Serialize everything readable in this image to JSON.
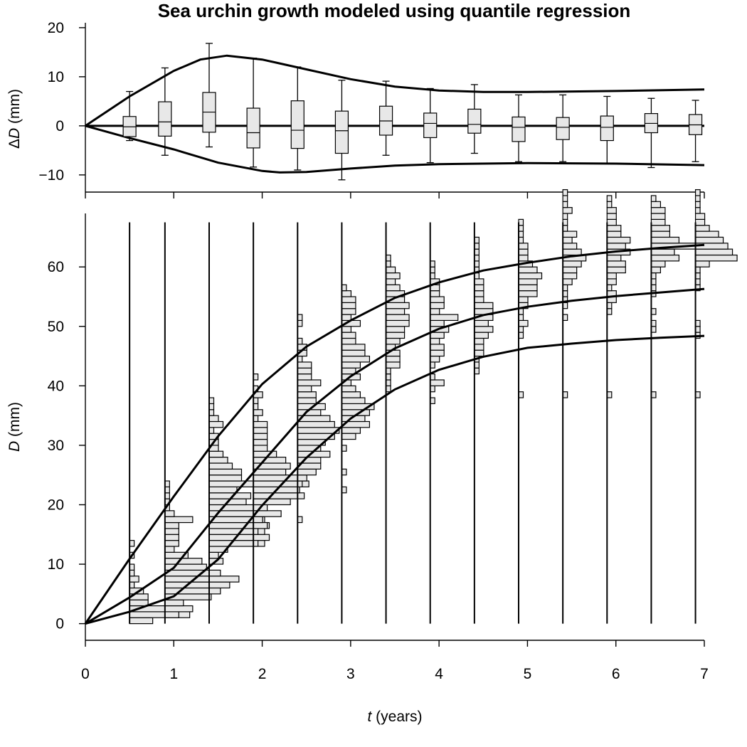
{
  "title": "Sea urchin growth modeled using quantile regression",
  "chart_data": [
    {
      "type": "box",
      "panel": "top",
      "xlabel": "",
      "ylabel_prefix": "Δ",
      "ylabel_var": "D",
      "ylabel_unit": "(mm)",
      "xlim": [
        0,
        7
      ],
      "ylim": [
        -13.5,
        21
      ],
      "y_ticks": [
        -10,
        0,
        10,
        20
      ],
      "y_tick_labels": [
        "−10",
        "0",
        "10",
        "20"
      ],
      "zero_line": true,
      "upper_curve": [
        [
          0,
          0
        ],
        [
          0.5,
          6
        ],
        [
          1,
          11.2
        ],
        [
          1.3,
          13.5
        ],
        [
          1.6,
          14.3
        ],
        [
          2,
          13.5
        ],
        [
          2.5,
          11.5
        ],
        [
          3,
          9.5
        ],
        [
          3.5,
          8
        ],
        [
          4,
          7.2
        ],
        [
          4.5,
          6.9
        ],
        [
          5,
          6.9
        ],
        [
          6,
          7.1
        ],
        [
          7,
          7.4
        ]
      ],
      "lower_curve": [
        [
          0,
          0
        ],
        [
          0.5,
          -2.5
        ],
        [
          1,
          -4.8
        ],
        [
          1.5,
          -7.5
        ],
        [
          2,
          -9.2
        ],
        [
          2.2,
          -9.5
        ],
        [
          2.5,
          -9.4
        ],
        [
          3,
          -8.7
        ],
        [
          3.5,
          -8.1
        ],
        [
          4,
          -7.8
        ],
        [
          5,
          -7.6
        ],
        [
          6,
          -7.7
        ],
        [
          7,
          -8
        ]
      ],
      "boxes": [
        {
          "t": 0.5,
          "min": -3,
          "q1": -2.2,
          "median": -0.2,
          "q3": 1.9,
          "max": 7
        },
        {
          "t": 0.9,
          "min": -6,
          "q1": -2.1,
          "median": 0.8,
          "q3": 4.9,
          "max": 11.8
        },
        {
          "t": 1.4,
          "min": -4.3,
          "q1": -1.3,
          "median": 2.8,
          "q3": 6.8,
          "max": 16.8
        },
        {
          "t": 1.9,
          "min": -8.4,
          "q1": -4.5,
          "median": -1.4,
          "q3": 3.6,
          "max": 13.8
        },
        {
          "t": 2.4,
          "min": -9,
          "q1": -4.6,
          "median": -0.9,
          "q3": 5.1,
          "max": 12
        },
        {
          "t": 2.9,
          "min": -11,
          "q1": -5.6,
          "median": -1,
          "q3": 3,
          "max": 9.3
        },
        {
          "t": 3.4,
          "min": -6,
          "q1": -1.9,
          "median": 1,
          "q3": 4,
          "max": 9.1
        },
        {
          "t": 3.9,
          "min": -7.5,
          "q1": -2.4,
          "median": 0.5,
          "q3": 2.6,
          "max": 7.6
        },
        {
          "t": 4.4,
          "min": -5.6,
          "q1": -1.5,
          "median": 0.3,
          "q3": 3.4,
          "max": 8.4
        },
        {
          "t": 4.9,
          "min": -7.3,
          "q1": -3.2,
          "median": -0.3,
          "q3": 1.8,
          "max": 6.3
        },
        {
          "t": 5.4,
          "min": -7.3,
          "q1": -2.8,
          "median": -0.3,
          "q3": 1.7,
          "max": 6.3
        },
        {
          "t": 5.9,
          "min": -7.7,
          "q1": -3,
          "median": -0.3,
          "q3": 2,
          "max": 6
        },
        {
          "t": 6.4,
          "min": -8.5,
          "q1": -1.4,
          "median": 0.5,
          "q3": 2.5,
          "max": 5.6
        },
        {
          "t": 6.9,
          "min": -7.3,
          "q1": -1.8,
          "median": 0.2,
          "q3": 2.3,
          "max": 5.2
        }
      ]
    },
    {
      "type": "line+histogram",
      "panel": "bottom",
      "xlabel_var": "t",
      "xlabel_unit": "(years)",
      "ylabel_var": "D",
      "ylabel_unit": "(mm)",
      "xlim": [
        0,
        7
      ],
      "ylim": [
        -2.8,
        69
      ],
      "x_ticks": [
        0,
        1,
        2,
        3,
        4,
        5,
        6,
        7
      ],
      "y_ticks": [
        0,
        10,
        20,
        30,
        40,
        50,
        60
      ],
      "quantile_curves": [
        {
          "points": [
            [
              0,
              0
            ],
            [
              0.5,
              10.9
            ],
            [
              1,
              21.4
            ],
            [
              1.5,
              31.5
            ],
            [
              2,
              40.3
            ],
            [
              2.5,
              46.6
            ],
            [
              3,
              51
            ],
            [
              3.5,
              54.8
            ],
            [
              4,
              57.4
            ],
            [
              4.5,
              59.4
            ],
            [
              5,
              60.7
            ],
            [
              5.5,
              61.8
            ],
            [
              6,
              62.6
            ],
            [
              6.5,
              63.2
            ],
            [
              7,
              63.7
            ]
          ]
        },
        {
          "points": [
            [
              0,
              0
            ],
            [
              0.5,
              4.4
            ],
            [
              1,
              9.4
            ],
            [
              1.5,
              18.6
            ],
            [
              2,
              27.1
            ],
            [
              2.5,
              35.6
            ],
            [
              3,
              41.6
            ],
            [
              3.5,
              46.3
            ],
            [
              4,
              49.6
            ],
            [
              4.5,
              51.9
            ],
            [
              5,
              53.3
            ],
            [
              5.5,
              54.3
            ],
            [
              6,
              55.1
            ],
            [
              6.5,
              55.7
            ],
            [
              7,
              56.3
            ]
          ]
        },
        {
          "points": [
            [
              0,
              0
            ],
            [
              0.5,
              2
            ],
            [
              1,
              4.6
            ],
            [
              1.5,
              10.8
            ],
            [
              2,
              19.9
            ],
            [
              2.5,
              27.9
            ],
            [
              3,
              34.5
            ],
            [
              3.5,
              39.4
            ],
            [
              4,
              42.7
            ],
            [
              4.5,
              44.9
            ],
            [
              5,
              46.4
            ],
            [
              5.5,
              47.1
            ],
            [
              6,
              47.7
            ],
            [
              6.5,
              48.1
            ],
            [
              7,
              48.4
            ]
          ]
        }
      ],
      "histograms": [
        {
          "t": 0.5,
          "start": 0,
          "counts": [
            5,
            13,
            10,
            4,
            4,
            3,
            1,
            2,
            1,
            1,
            0,
            1,
            0,
            1
          ]
        },
        {
          "t": 0.9,
          "start": 1,
          "counts": [
            3,
            6,
            4,
            10,
            12,
            14,
            16,
            12,
            9,
            8,
            5,
            2,
            3,
            3,
            3,
            3,
            6,
            2,
            1,
            1,
            1,
            1,
            1
          ]
        },
        {
          "t": 1.4,
          "start": 10,
          "counts": [
            3,
            2,
            4,
            12,
            13,
            12,
            13,
            12,
            10,
            10,
            8,
            9,
            6,
            10,
            7,
            7,
            5,
            4,
            3,
            2,
            2,
            2,
            1,
            3,
            2,
            1,
            1,
            1
          ]
        },
        {
          "t": 1.9,
          "start": 13,
          "counts": [
            1,
            0,
            1,
            3,
            2,
            6,
            3,
            8,
            11,
            10,
            12,
            10,
            7,
            8,
            7,
            5,
            3,
            3,
            3,
            3,
            3,
            1,
            2,
            1,
            1,
            2,
            1,
            0,
            1
          ]
        },
        {
          "t": 2.4,
          "start": 17,
          "counts": [
            1,
            0,
            0,
            0,
            0,
            0,
            1,
            2,
            4,
            5,
            5,
            7,
            5,
            6,
            8,
            9,
            8,
            7,
            5,
            6,
            4,
            4,
            3,
            5,
            3,
            3,
            3,
            1,
            2,
            2,
            1,
            0,
            0,
            1,
            1
          ]
        },
        {
          "t": 2.9,
          "start": 21,
          "counts": [
            0,
            1,
            0,
            0,
            1,
            0,
            0,
            0,
            1,
            0,
            3,
            4,
            6,
            5,
            6,
            7,
            5,
            4,
            3,
            2,
            4,
            3,
            4,
            6,
            5,
            5,
            3,
            3,
            2,
            4,
            2,
            3,
            3,
            3,
            2,
            1
          ]
        },
        {
          "t": 3.4,
          "start": 27,
          "counts": [
            0,
            0,
            0,
            0,
            0,
            0,
            0,
            0,
            0,
            0,
            0,
            0,
            1,
            1,
            1,
            1,
            3,
            3,
            3,
            2,
            3,
            4,
            4,
            5,
            5,
            4,
            5,
            4,
            4,
            3,
            2,
            3,
            2,
            1,
            1
          ]
        },
        {
          "t": 3.9,
          "start": 37,
          "counts": [
            1,
            0,
            1,
            3,
            1,
            0,
            1,
            2,
            3,
            3,
            2,
            3,
            4,
            3,
            6,
            2,
            3,
            3,
            2,
            2,
            2,
            1,
            1,
            1
          ]
        },
        {
          "t": 4.4,
          "start": 42,
          "counts": [
            1,
            1,
            1,
            2,
            2,
            2,
            3,
            4,
            3,
            4,
            4,
            4,
            2,
            2,
            2,
            2,
            1,
            1,
            1,
            1,
            1,
            1,
            1
          ]
        },
        {
          "t": 4.9,
          "start": 38,
          "counts": [
            1,
            0,
            0,
            0,
            0,
            0,
            0,
            0,
            0,
            0,
            1,
            1,
            2,
            1,
            1,
            2,
            2,
            4,
            4,
            4,
            5,
            4,
            3,
            2,
            2,
            2,
            1,
            1,
            1,
            1
          ]
        },
        {
          "t": 5.4,
          "start": 38,
          "counts": [
            1,
            0,
            0,
            0,
            0,
            0,
            0,
            0,
            0,
            0,
            0,
            0,
            0,
            1,
            0,
            1,
            1,
            1,
            1,
            2,
            3,
            3,
            4,
            5,
            4,
            3,
            2,
            3,
            1,
            1,
            1,
            2,
            1,
            1,
            1
          ]
        },
        {
          "t": 5.9,
          "start": 38,
          "counts": [
            1,
            0,
            0,
            0,
            0,
            0,
            0,
            0,
            0,
            0,
            0,
            0,
            0,
            0,
            1,
            1,
            2,
            2,
            1,
            2,
            2,
            4,
            4,
            3,
            5,
            4,
            5,
            3,
            3,
            2,
            2,
            2,
            1,
            1
          ]
        },
        {
          "t": 6.4,
          "start": 38,
          "counts": [
            1,
            0,
            0,
            0,
            0,
            0,
            0,
            0,
            0,
            0,
            0,
            1,
            1,
            0,
            1,
            0,
            0,
            1,
            1,
            1,
            1,
            2,
            3,
            6,
            5,
            10,
            6,
            4,
            4,
            3,
            3,
            3,
            2,
            1
          ]
        },
        {
          "t": 6.9,
          "start": 38,
          "counts": [
            1,
            0,
            0,
            0,
            0,
            0,
            0,
            0,
            0,
            0,
            1,
            1,
            1,
            0,
            0,
            0,
            0,
            0,
            1,
            1,
            1,
            1,
            3,
            9,
            8,
            7,
            6,
            5,
            3,
            2,
            2,
            1,
            1,
            1,
            1
          ]
        }
      ]
    }
  ]
}
